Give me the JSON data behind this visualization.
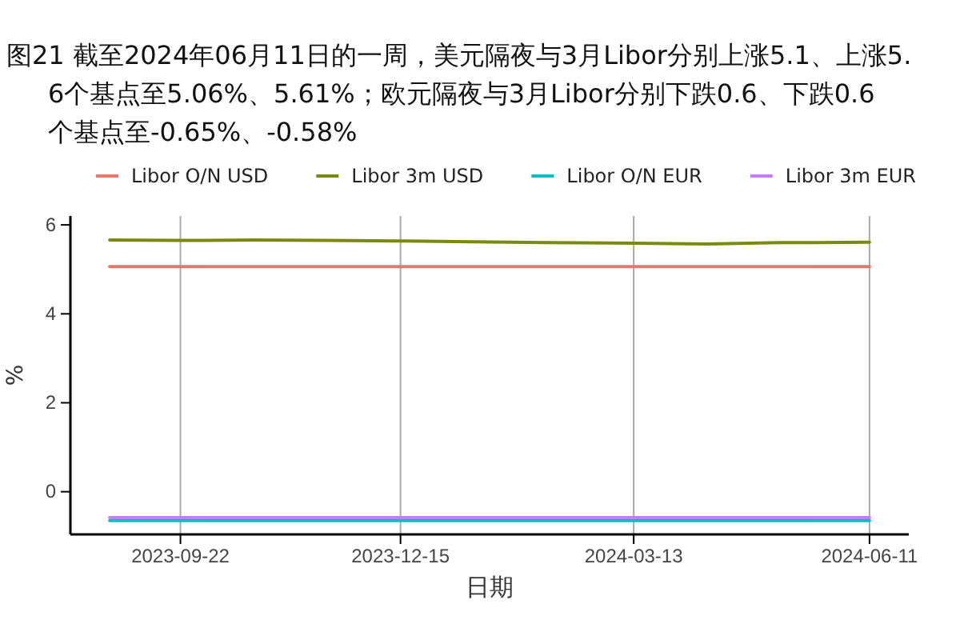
{
  "chart_data": {
    "type": "line",
    "title": "图21  截至2024年06月11日的一周，美元隔夜与3月Libor分别上涨5.1、上涨5.6个基点至5.06%、5.61%；欧元隔夜与3月Libor分别下跌0.6、下跌0.6个基点至-0.65%、-0.58%",
    "xlabel": "日期",
    "ylabel": "%",
    "xlim": [
      "2023-08-11",
      "2024-06-26"
    ],
    "xticks": [
      "2023-09-22",
      "2023-12-15",
      "2024-03-13",
      "2024-06-11"
    ],
    "ylim": [
      -0.96,
      6.2
    ],
    "yticks": [
      0,
      2,
      4,
      6
    ],
    "grid": "x",
    "legend": "top",
    "x": [
      "2023-08-26",
      "2023-09-22",
      "2023-10-20",
      "2023-11-17",
      "2023-12-15",
      "2024-01-12",
      "2024-02-09",
      "2024-03-13",
      "2024-04-10",
      "2024-05-08",
      "2024-06-11"
    ],
    "series": [
      {
        "name": "Libor O/N USD",
        "color": "#e8766d",
        "values": [
          5.06,
          5.06,
          5.06,
          5.06,
          5.06,
          5.06,
          5.06,
          5.06,
          5.06,
          5.06,
          5.06
        ]
      },
      {
        "name": "Libor 3m USD",
        "color": "#7a8a10",
        "values": [
          5.66,
          5.65,
          5.66,
          5.65,
          5.64,
          5.62,
          5.6,
          5.59,
          5.57,
          5.6,
          5.61
        ]
      },
      {
        "name": "Libor O/N EUR",
        "color": "#00bfc4",
        "values": [
          -0.65,
          -0.65,
          -0.65,
          -0.65,
          -0.65,
          -0.65,
          -0.65,
          -0.65,
          -0.65,
          -0.65,
          -0.65
        ]
      },
      {
        "name": "Libor 3m EUR",
        "color": "#c77cff",
        "values": [
          -0.58,
          -0.58,
          -0.58,
          -0.58,
          -0.58,
          -0.58,
          -0.58,
          -0.58,
          -0.58,
          -0.58,
          -0.58
        ]
      }
    ]
  }
}
